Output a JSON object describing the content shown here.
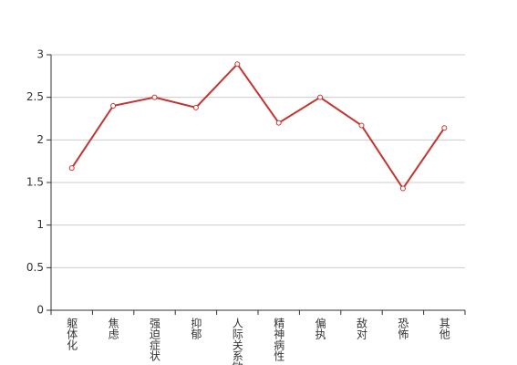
{
  "chart_data": {
    "type": "line",
    "categories": [
      "躯体化",
      "焦虑",
      "强迫症状",
      "抑郁",
      "人际关系敏感",
      "精神病性",
      "偏执",
      "敌对",
      "恐怖",
      "其他"
    ],
    "series": [
      {
        "color": "#c23531",
        "values": [
          1.67,
          2.4,
          2.5,
          2.38,
          2.89,
          2.2,
          2.5,
          2.17,
          1.43,
          2.14
        ]
      }
    ],
    "ylim": [
      0,
      3
    ],
    "yticks": [
      0,
      0.5,
      1,
      1.5,
      2,
      2.5,
      3
    ],
    "grid": true
  }
}
